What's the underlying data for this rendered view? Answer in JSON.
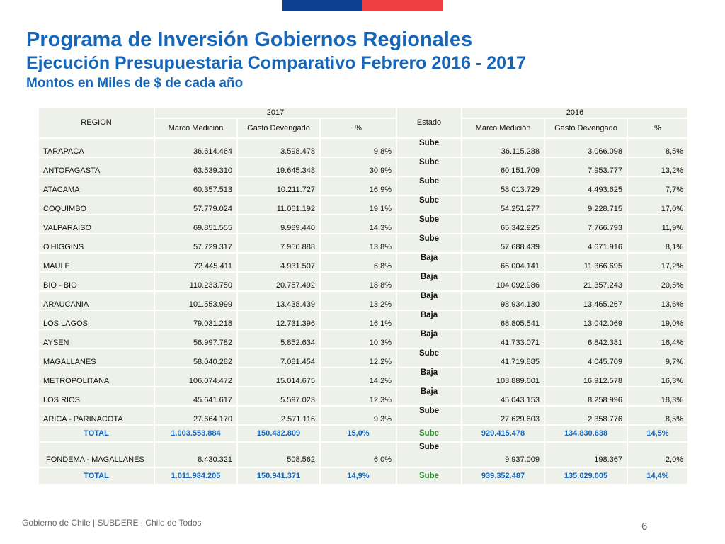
{
  "colors": {
    "flag_blue": "#0b3f8f",
    "flag_red": "#ef3f43",
    "title": "#1565b8",
    "sube": "#2e8b2e",
    "baja": "#d00000",
    "cell_bg": "#eef0ea"
  },
  "title": "Programa de Inversión Gobiernos Regionales",
  "subtitle": "Ejecución Presupuestaria Comparativo Febrero 2016 - 2017",
  "subtitle2": "Montos en Miles de $ de cada año",
  "table": {
    "region_header": "REGION",
    "year_2017": "2017",
    "year_2016": "2016",
    "estado_header": "Estado",
    "col_marco": "Marco Medición",
    "col_gasto": "Gasto Devengado",
    "col_pct": "%",
    "rows": [
      {
        "region": "TARAPACA",
        "m17": "36.614.464",
        "g17": "3.598.478",
        "p17": "9,8%",
        "estado": "Sube",
        "m16": "36.115.288",
        "g16": "3.066.098",
        "p16": "8,5%"
      },
      {
        "region": "ANTOFAGASTA",
        "m17": "63.539.310",
        "g17": "19.645.348",
        "p17": "30,9%",
        "estado": "Sube",
        "m16": "60.151.709",
        "g16": "7.953.777",
        "p16": "13,2%"
      },
      {
        "region": "ATACAMA",
        "m17": "60.357.513",
        "g17": "10.211.727",
        "p17": "16,9%",
        "estado": "Sube",
        "m16": "58.013.729",
        "g16": "4.493.625",
        "p16": "7,7%"
      },
      {
        "region": "COQUIMBO",
        "m17": "57.779.024",
        "g17": "11.061.192",
        "p17": "19,1%",
        "estado": "Sube",
        "m16": "54.251.277",
        "g16": "9.228.715",
        "p16": "17,0%"
      },
      {
        "region": "VALPARAISO",
        "m17": "69.851.555",
        "g17": "9.989.440",
        "p17": "14,3%",
        "estado": "Sube",
        "m16": "65.342.925",
        "g16": "7.766.793",
        "p16": "11,9%"
      },
      {
        "region": "O'HIGGINS",
        "m17": "57.729.317",
        "g17": "7.950.888",
        "p17": "13,8%",
        "estado": "Sube",
        "m16": "57.688.439",
        "g16": "4.671.916",
        "p16": "8,1%"
      },
      {
        "region": "MAULE",
        "m17": "72.445.411",
        "g17": "4.931.507",
        "p17": "6,8%",
        "estado": "Baja",
        "m16": "66.004.141",
        "g16": "11.366.695",
        "p16": "17,2%"
      },
      {
        "region": "BIO - BIO",
        "m17": "110.233.750",
        "g17": "20.757.492",
        "p17": "18,8%",
        "estado": "Baja",
        "m16": "104.092.986",
        "g16": "21.357.243",
        "p16": "20,5%"
      },
      {
        "region": "ARAUCANIA",
        "m17": "101.553.999",
        "g17": "13.438.439",
        "p17": "13,2%",
        "estado": "Baja",
        "m16": "98.934.130",
        "g16": "13.465.267",
        "p16": "13,6%"
      },
      {
        "region": "LOS LAGOS",
        "m17": "79.031.218",
        "g17": "12.731.396",
        "p17": "16,1%",
        "estado": "Baja",
        "m16": "68.805.541",
        "g16": "13.042.069",
        "p16": "19,0%"
      },
      {
        "region": "AYSEN",
        "m17": "56.997.782",
        "g17": "5.852.634",
        "p17": "10,3%",
        "estado": "Baja",
        "m16": "41.733.071",
        "g16": "6.842.381",
        "p16": "16,4%"
      },
      {
        "region": "MAGALLANES",
        "m17": "58.040.282",
        "g17": "7.081.454",
        "p17": "12,2%",
        "estado": "Sube",
        "m16": "41.719.885",
        "g16": "4.045.709",
        "p16": "9,7%"
      },
      {
        "region": "METROPOLITANA",
        "m17": "106.074.472",
        "g17": "15.014.675",
        "p17": "14,2%",
        "estado": "Baja",
        "m16": "103.889.601",
        "g16": "16.912.578",
        "p16": "16,3%"
      },
      {
        "region": "LOS RIOS",
        "m17": "45.641.617",
        "g17": "5.597.023",
        "p17": "12,3%",
        "estado": "Baja",
        "m16": "45.043.153",
        "g16": "8.258.996",
        "p16": "18,3%"
      },
      {
        "region": "ARICA - PARINACOTA",
        "m17": "27.664.170",
        "g17": "2.571.116",
        "p17": "9,3%",
        "estado": "Sube",
        "m16": "27.629.603",
        "g16": "2.358.776",
        "p16": "8,5%"
      }
    ],
    "total": {
      "region": "TOTAL",
      "m17": "1.003.553.884",
      "g17": "150.432.809",
      "p17": "15,0%",
      "estado": "Sube",
      "m16": "929.415.478",
      "g16": "134.830.638",
      "p16": "14,5%"
    },
    "fondema": {
      "region": "FONDEMA  - MAGALLANES",
      "m17": "8.430.321",
      "g17": "508.562",
      "p17": "6,0%",
      "estado": "Sube",
      "m16": "9.937.009",
      "g16": "198.367",
      "p16": "2,0%"
    },
    "grand_total": {
      "region": "TOTAL",
      "m17": "1.011.984.205",
      "g17": "150.941.371",
      "p17": "14,9%",
      "estado": "Sube",
      "m16": "939.352.487",
      "g16": "135.029.005",
      "p16": "14,4%"
    }
  },
  "footer": "Gobierno de Chile | SUBDERE | Chile de Todos",
  "page_number": "6"
}
